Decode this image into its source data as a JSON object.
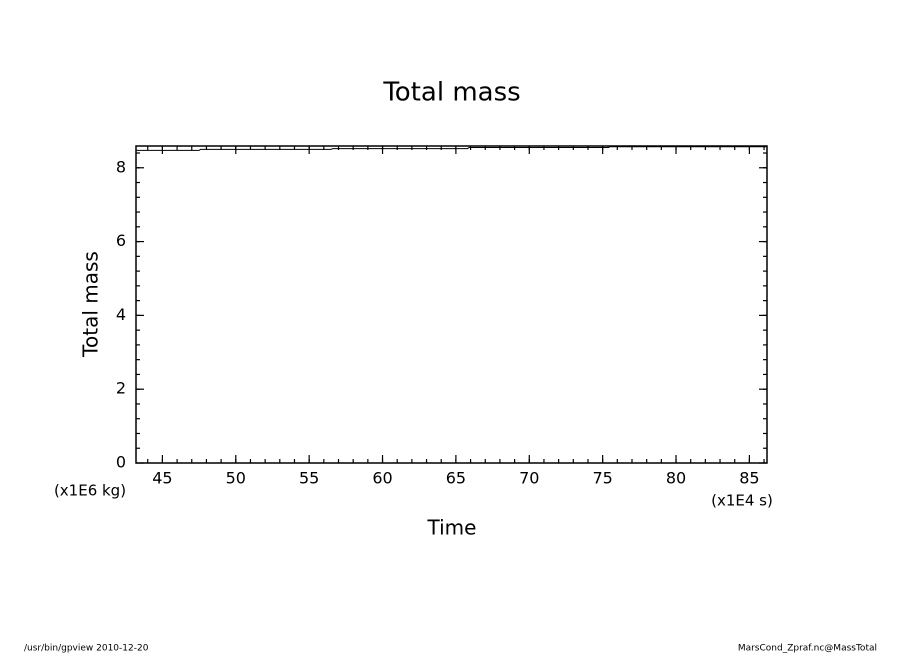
{
  "chart_data": {
    "type": "line",
    "title": "Total mass",
    "x_label": "Time",
    "y_label": "Total mass",
    "x_unit": "(x1E4 s)",
    "y_unit": "(x1E6 kg)",
    "footer_left": "/usr/bin/gpview  2010-12-20",
    "footer_right": "MarsCond_Zpraf.nc@MassTotal",
    "x": [
      43.2,
      47.5,
      47.6,
      56.5,
      56.6,
      65.8,
      65.9,
      75.4,
      75.5,
      86.2
    ],
    "series": [
      {
        "name": "Total mass",
        "color": "#000000",
        "values": [
          8.47,
          8.47,
          8.5,
          8.5,
          8.52,
          8.52,
          8.55,
          8.55,
          8.57,
          8.57
        ]
      }
    ],
    "xlim": [
      43.2,
      86.2
    ],
    "ylim": [
      0,
      8.59
    ],
    "xticks": [
      45,
      50,
      55,
      60,
      65,
      70,
      75,
      80,
      85
    ],
    "yticks": [
      0,
      2,
      4,
      6,
      8
    ]
  }
}
